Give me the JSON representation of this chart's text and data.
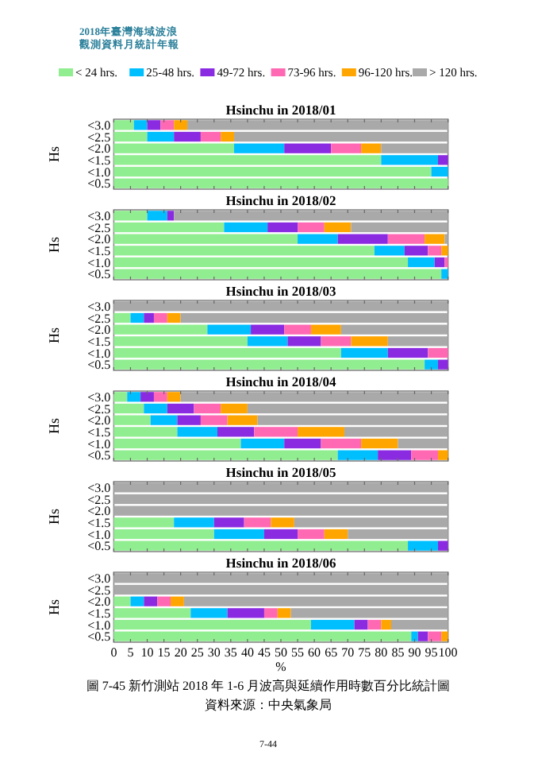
{
  "chart_data": [
    {
      "type": "bar",
      "orientation": "horizontal",
      "stacked": true,
      "title": "Hsinchu in 2018/01",
      "ylabel": "Hs",
      "categories": [
        "<3.0",
        "<2.5",
        "<2.0",
        "<1.5",
        "<1.0",
        "<0.5"
      ],
      "xlim": [
        0,
        100
      ],
      "xticks": [
        0,
        5,
        10,
        15,
        20,
        25,
        30,
        35,
        40,
        45,
        50,
        55,
        60,
        65,
        70,
        75,
        80,
        85,
        90,
        95,
        100
      ],
      "tick_labels": "y",
      "legend": "top",
      "annotations": [
        "2018年臺灣海域波浪",
        "觀測資料月統計年報"
      ],
      "series": [
        {
          "name": "< 24 hrs.",
          "color": "#90ee90",
          "values": [
            6,
            10,
            36,
            80,
            95,
            100
          ]
        },
        {
          "name": "25-48 hrs.",
          "color": "#00bfff",
          "values": [
            4,
            8,
            15,
            17,
            5,
            0
          ]
        },
        {
          "name": "49-72 hrs.",
          "color": "#8a2be2",
          "values": [
            4,
            8,
            14,
            3,
            0,
            0
          ]
        },
        {
          "name": "73-96 hrs.",
          "color": "#ff69b4",
          "values": [
            4,
            6,
            9,
            0,
            0,
            0
          ]
        },
        {
          "name": "96-120 hrs.",
          "color": "#ffa500",
          "values": [
            4,
            4,
            6,
            0,
            0,
            0
          ]
        },
        {
          "name": "> 120 hrs.",
          "color": "#a9a9a9",
          "values": [
            78,
            64,
            20,
            0,
            0,
            0
          ]
        }
      ]
    },
    {
      "type": "bar",
      "orientation": "horizontal",
      "stacked": true,
      "title": "Hsinchu in 2018/02",
      "ylabel": "Hs",
      "categories": [
        "<3.0",
        "<2.5",
        "<2.0",
        "<1.5",
        "<1.0",
        "<0.5"
      ],
      "xlim": [
        0,
        100
      ],
      "xticks": [
        0,
        5,
        10,
        15,
        20,
        25,
        30,
        35,
        40,
        45,
        50,
        55,
        60,
        65,
        70,
        75,
        80,
        85,
        90,
        95,
        100
      ],
      "tick_labels": "y",
      "series": [
        {
          "color": "#90ee90",
          "values": [
            10,
            33,
            55,
            78,
            88,
            98
          ]
        },
        {
          "color": "#00bfff",
          "values": [
            6,
            13,
            12,
            9,
            8,
            2
          ]
        },
        {
          "color": "#8a2be2",
          "values": [
            2,
            9,
            15,
            7,
            3,
            0
          ]
        },
        {
          "color": "#ff69b4",
          "values": [
            0,
            8,
            11,
            4,
            1,
            0
          ]
        },
        {
          "color": "#ffa500",
          "values": [
            0,
            8,
            6,
            2,
            0,
            0
          ]
        },
        {
          "color": "#a9a9a9",
          "values": [
            82,
            29,
            1,
            0,
            0,
            0
          ]
        }
      ]
    },
    {
      "type": "bar",
      "orientation": "horizontal",
      "stacked": true,
      "title": "Hsinchu in 2018/03",
      "ylabel": "Hs",
      "categories": [
        "<3.0",
        "<2.5",
        "<2.0",
        "<1.5",
        "<1.0",
        "<0.5"
      ],
      "xlim": [
        0,
        100
      ],
      "xticks": [
        0,
        5,
        10,
        15,
        20,
        25,
        30,
        35,
        40,
        45,
        50,
        55,
        60,
        65,
        70,
        75,
        80,
        85,
        90,
        95,
        100
      ],
      "tick_labels": "y",
      "series": [
        {
          "color": "#90ee90",
          "values": [
            0,
            5,
            28,
            40,
            68,
            93
          ]
        },
        {
          "color": "#00bfff",
          "values": [
            0,
            4,
            13,
            12,
            14,
            4
          ]
        },
        {
          "color": "#8a2be2",
          "values": [
            0,
            3,
            10,
            10,
            12,
            3
          ]
        },
        {
          "color": "#ff69b4",
          "values": [
            0,
            4,
            8,
            9,
            6,
            0
          ]
        },
        {
          "color": "#ffa500",
          "values": [
            0,
            4,
            9,
            11,
            0,
            0
          ]
        },
        {
          "color": "#a9a9a9",
          "values": [
            100,
            80,
            32,
            18,
            0,
            0
          ]
        }
      ]
    },
    {
      "type": "bar",
      "orientation": "horizontal",
      "stacked": true,
      "title": "Hsinchu in 2018/04",
      "ylabel": "Hs",
      "categories": [
        "<3.0",
        "<2.5",
        "<2.0",
        "<1.5",
        "<1.0",
        "<0.5"
      ],
      "xlim": [
        0,
        100
      ],
      "xticks": [
        0,
        5,
        10,
        15,
        20,
        25,
        30,
        35,
        40,
        45,
        50,
        55,
        60,
        65,
        70,
        75,
        80,
        85,
        90,
        95,
        100
      ],
      "tick_labels": "y",
      "series": [
        {
          "color": "#90ee90",
          "values": [
            4,
            9,
            11,
            19,
            38,
            67
          ]
        },
        {
          "color": "#00bfff",
          "values": [
            4,
            7,
            8,
            12,
            13,
            12
          ]
        },
        {
          "color": "#8a2be2",
          "values": [
            4,
            8,
            7,
            11,
            11,
            10
          ]
        },
        {
          "color": "#ff69b4",
          "values": [
            4,
            8,
            8,
            13,
            12,
            8
          ]
        },
        {
          "color": "#ffa500",
          "values": [
            4,
            8,
            9,
            14,
            11,
            3
          ]
        },
        {
          "color": "#a9a9a9",
          "values": [
            80,
            60,
            57,
            31,
            15,
            0
          ]
        }
      ]
    },
    {
      "type": "bar",
      "orientation": "horizontal",
      "stacked": true,
      "title": "Hsinchu in 2018/05",
      "ylabel": "Hs",
      "categories": [
        "<3.0",
        "<2.5",
        "<2.0",
        "<1.5",
        "<1.0",
        "<0.5"
      ],
      "xlim": [
        0,
        100
      ],
      "xticks": [
        0,
        5,
        10,
        15,
        20,
        25,
        30,
        35,
        40,
        45,
        50,
        55,
        60,
        65,
        70,
        75,
        80,
        85,
        90,
        95,
        100
      ],
      "tick_labels": "y",
      "series": [
        {
          "color": "#90ee90",
          "values": [
            0,
            0,
            0,
            18,
            30,
            88
          ]
        },
        {
          "color": "#00bfff",
          "values": [
            0,
            0,
            0,
            12,
            15,
            9
          ]
        },
        {
          "color": "#8a2be2",
          "values": [
            0,
            0,
            0,
            9,
            10,
            3
          ]
        },
        {
          "color": "#ff69b4",
          "values": [
            0,
            0,
            0,
            8,
            8,
            0
          ]
        },
        {
          "color": "#ffa500",
          "values": [
            0,
            0,
            0,
            7,
            7,
            0
          ]
        },
        {
          "color": "#a9a9a9",
          "values": [
            100,
            100,
            100,
            46,
            30,
            0
          ]
        }
      ]
    },
    {
      "type": "bar",
      "orientation": "horizontal",
      "stacked": true,
      "title": "Hsinchu in 2018/06",
      "ylabel": "Hs",
      "xlabel": "%",
      "categories": [
        "<3.0",
        "<2.5",
        "<2.0",
        "<1.5",
        "<1.0",
        "<0.5"
      ],
      "xlim": [
        0,
        100
      ],
      "xticks": [
        0,
        5,
        10,
        15,
        20,
        25,
        30,
        35,
        40,
        45,
        50,
        55,
        60,
        65,
        70,
        75,
        80,
        85,
        90,
        95,
        100
      ],
      "annotations": [
        "圖 7-45 新竹測站 2018 年 1-6 月波高與延續作用時數百分比統計圖",
        "資料來源：中央氣象局",
        "7-44"
      ],
      "series": [
        {
          "color": "#90ee90",
          "values": [
            0,
            0,
            5,
            23,
            59,
            89
          ]
        },
        {
          "color": "#00bfff",
          "values": [
            0,
            0,
            4,
            11,
            13,
            2
          ]
        },
        {
          "color": "#8a2be2",
          "values": [
            0,
            0,
            4,
            11,
            4,
            3
          ]
        },
        {
          "color": "#ff69b4",
          "values": [
            0,
            0,
            4,
            4,
            4,
            4
          ]
        },
        {
          "color": "#ffa500",
          "values": [
            0,
            0,
            4,
            4,
            3,
            2
          ]
        },
        {
          "color": "#a9a9a9",
          "values": [
            100,
            100,
            79,
            47,
            17,
            0
          ]
        }
      ]
    }
  ]
}
